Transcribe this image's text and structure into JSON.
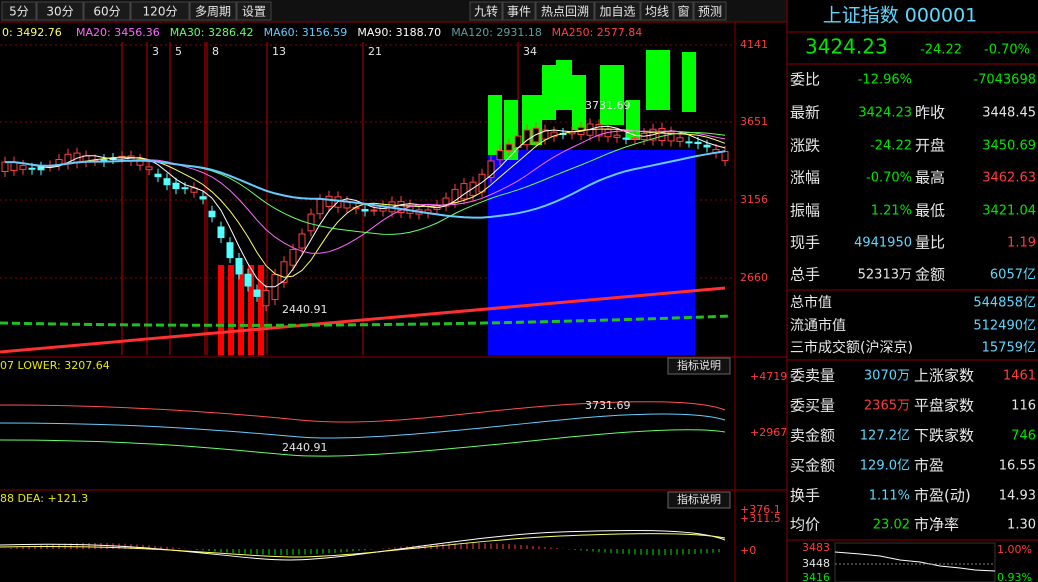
{
  "toolbar": {
    "tabs": [
      "5分",
      "30分",
      "60分",
      "120分",
      "多周期",
      "设置"
    ],
    "actions": [
      "九转",
      "事件",
      "热点回溯",
      "加自选",
      "均线",
      "窗",
      "预测"
    ]
  },
  "main": {
    "ma_legend": [
      "0: 3492.76",
      "MA20: 3456.36",
      "MA30: 3286.42",
      "MA60: 3156.59",
      "MA90: 3188.70",
      "MA120: 2931.18",
      "MA250: 2577.84"
    ],
    "price_ticks": [
      "4141",
      "3651",
      "3156",
      "2660"
    ],
    "fib_marks": [
      "3",
      "5",
      "8",
      "13",
      "21",
      "34"
    ],
    "high_label": "3731.69",
    "low_label": "2440.91"
  },
  "indicator1": {
    "legend": "07 LOWER: 3207.64",
    "button": "指标说明",
    "ticks": [
      "+4719",
      "+2967"
    ],
    "high_label": "3731.69",
    "low_label": "2440.91"
  },
  "indicator2": {
    "legend": "88 DEA: +121.3",
    "button": "指标说明",
    "ticks": [
      "+376.1",
      "+311.5",
      "+0"
    ]
  },
  "quote": {
    "title": "上证指数 000001",
    "price": "3424.23",
    "change": "-24.22",
    "pct": "-0.70%",
    "rows": [
      [
        "委比",
        "-12.96%",
        "",
        "-7043698"
      ],
      [
        "最新",
        "3424.23",
        "昨收",
        "3448.45"
      ],
      [
        "涨跌",
        "-24.22",
        "开盘",
        "3450.69"
      ],
      [
        "涨幅",
        "-0.70%",
        "最高",
        "3462.63"
      ],
      [
        "振幅",
        "1.21%",
        "最低",
        "3421.04"
      ],
      [
        "现手",
        "4941950",
        "量比",
        "1.19"
      ],
      [
        "总手",
        "52313万",
        "金额",
        "6057亿"
      ]
    ],
    "totals": [
      [
        "总市值",
        "544858亿"
      ],
      [
        "流通市值",
        "512490亿"
      ],
      [
        "三市成交额(沪深京)",
        "15759亿"
      ]
    ],
    "book": [
      [
        "委卖量",
        "3070万",
        "上涨家数",
        "1461"
      ],
      [
        "委买量",
        "2365万",
        "平盘家数",
        "116"
      ],
      [
        "卖金额",
        "127.2亿",
        "下跌家数",
        "746"
      ],
      [
        "买金额",
        "129.0亿",
        "市盈",
        "16.55"
      ],
      [
        "换手",
        "1.11%",
        "市盈(动)",
        "14.93"
      ],
      [
        "均价",
        "23.02",
        "市净率",
        "1.30"
      ]
    ],
    "mini": {
      "ticks": [
        "3483",
        "3448",
        "3416"
      ],
      "pcts": [
        "1.00%",
        "0.93%"
      ]
    }
  }
}
